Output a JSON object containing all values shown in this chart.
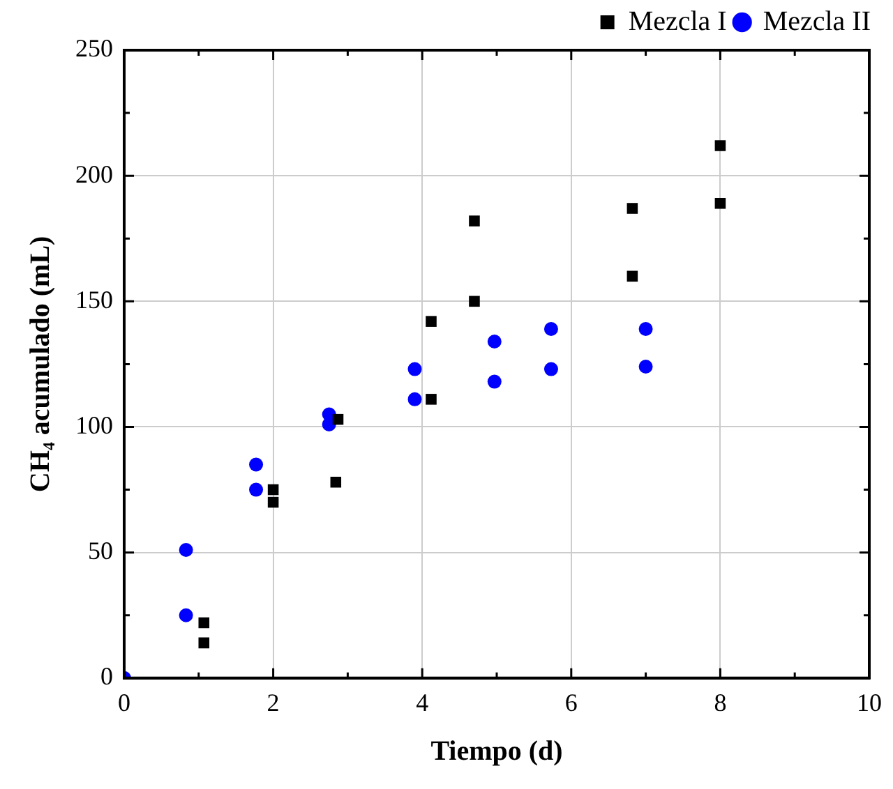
{
  "chart_data": {
    "type": "scatter",
    "xlabel": "Tiempo (d)",
    "ylabel": "CH₄ acumulado (mL)",
    "xlim": [
      0,
      10
    ],
    "xticks": [
      0,
      {
        "value": 1,
        "label": null
      },
      2,
      {
        "value": 3,
        "label": null
      },
      4,
      {
        "value": 5,
        "label": null
      },
      6,
      {
        "value": 7,
        "label": null
      },
      8,
      {
        "value": 9,
        "label": null
      },
      10
    ],
    "ylim": [
      0,
      250
    ],
    "yticks": [
      0,
      {
        "value": 25,
        "label": null
      },
      50,
      {
        "value": 75,
        "label": null
      },
      100,
      {
        "value": 125,
        "label": null
      },
      150,
      {
        "value": 175,
        "label": null
      },
      200,
      {
        "value": 225,
        "label": null
      },
      250
    ],
    "grid": true,
    "legend": "top right",
    "series": [
      {
        "name": "Mezcla I",
        "color": "#000000",
        "marker": "square",
        "x": [
          1.07,
          1.07,
          2.0,
          2.0,
          2.87,
          2.84,
          4.12,
          4.12,
          4.7,
          4.7,
          6.82,
          6.82,
          8.0,
          8.0
        ],
        "values": [
          22,
          14,
          75,
          70,
          103,
          78,
          142,
          111,
          182,
          150,
          187,
          160,
          212,
          189
        ]
      },
      {
        "name": "Mezcla II",
        "color": "#0000ff",
        "marker": "circle",
        "x": [
          0,
          0.83,
          0.83,
          1.77,
          1.77,
          2.75,
          2.75,
          3.9,
          3.9,
          4.97,
          4.97,
          5.73,
          5.73,
          7.0,
          7.0
        ],
        "values": [
          0,
          51,
          25,
          85,
          75,
          105,
          101,
          123,
          111,
          134,
          118,
          139,
          123,
          139,
          124
        ]
      }
    ]
  }
}
